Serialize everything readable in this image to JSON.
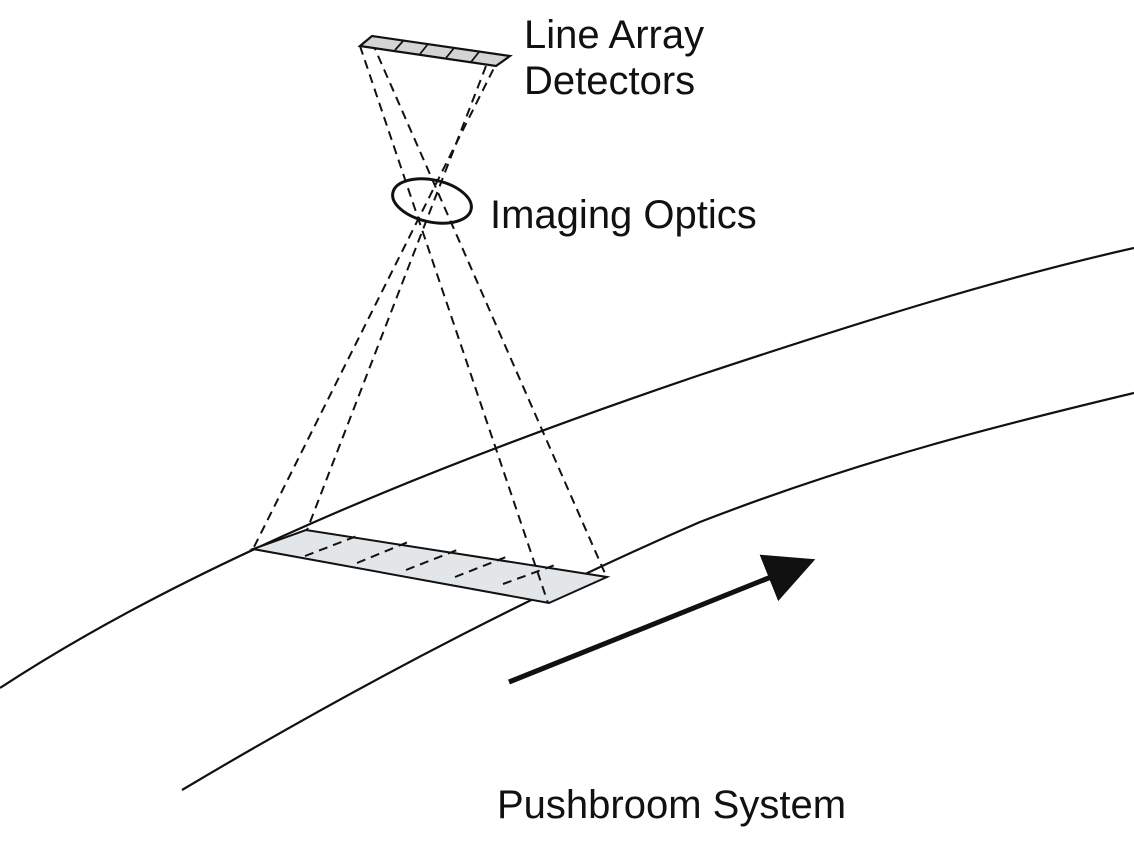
{
  "labels": {
    "detectors_line1": "Line Array",
    "detectors_line2": "Detectors",
    "optics": "Imaging Optics",
    "title": "Pushbroom System"
  },
  "colors": {
    "line": "#111111",
    "footprint_fill": "#e3e6e8",
    "detector_fill": "#d4d4d4",
    "background": "#ffffff"
  },
  "icons": {
    "direction": "arrow-right-icon"
  }
}
